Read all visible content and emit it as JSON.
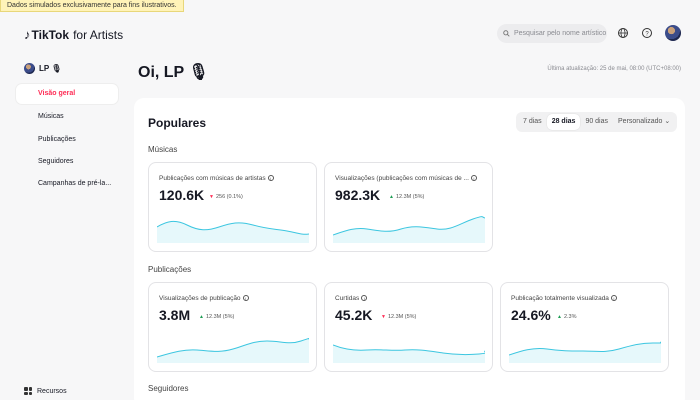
{
  "banner": "Dados simulados exclusivamente para fins ilustrativos.",
  "app": {
    "brand": "TikTok",
    "suffix": "for Artists",
    "logo_icon": "tiktok-note-icon"
  },
  "search": {
    "placeholder": "Pesquisar pelo nome artístico"
  },
  "sidebar": {
    "user": "LP 🎙",
    "items": [
      {
        "label": "Visão geral",
        "active": true
      },
      {
        "label": "Músicas"
      },
      {
        "label": "Publicações"
      },
      {
        "label": "Seguidores"
      },
      {
        "label": "Campanhas de pré-la..."
      }
    ],
    "resources": "Recursos"
  },
  "main": {
    "greeting": "Oi, LP 🎙",
    "updated": "Última atualização: 25 de mai, 08:00 (UTC+08:00)",
    "title": "Populares",
    "range": [
      "7 dias",
      "28 dias",
      "90 dias",
      "Personalizado"
    ],
    "range_selected": "28 dias",
    "sections": {
      "musicas": "Músicas",
      "publicacoes": "Publicações",
      "seguidores": "Seguidores"
    },
    "cards": {
      "c1": {
        "title": "Publicações com músicas de artistas",
        "value": "120.6K",
        "change": "256 (0.1%)",
        "dir": "down"
      },
      "c2": {
        "title": "Visualizações (publicações com músicas de ...",
        "value": "982.3K",
        "change": "12.3M (5%)",
        "dir": "up"
      },
      "c3": {
        "title": "Visualizações de publicação",
        "value": "3.8M",
        "change": "12.3M (5%)",
        "dir": "up"
      },
      "c4": {
        "title": "Curtidas",
        "value": "45.2K",
        "change": "12.3M (5%)",
        "dir": "down"
      },
      "c5": {
        "title": "Publicação totalmente visualizada",
        "value": "24.6%",
        "change": "2.3%",
        "dir": "up"
      }
    }
  },
  "colors": {
    "accent": "#fe2c55",
    "spark": "#3cc6e0",
    "up": "#1f9d55"
  }
}
